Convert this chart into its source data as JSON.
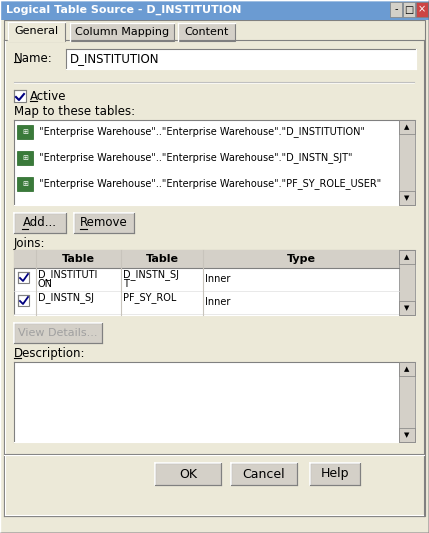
{
  "title": "Logical Table Source - D_INSTITUTION",
  "title_bar_color": "#6b9bd2",
  "title_text_color": "#ffffff",
  "bg_color": "#d4d0c8",
  "dialog_bg": "#ece9d8",
  "tabs": [
    "General",
    "Column Mapping",
    "Content"
  ],
  "name_label": "Name:",
  "name_value": "D_INSTITUTION",
  "active_label": "Active",
  "map_label": "Map to these tables:",
  "table_entries": [
    " \"Enterprise Warehouse\"..\"Enterprise Warehouse\".\"D_INSTITUTION\"",
    " \"Enterprise Warehouse\"..\"Enterprise Warehouse\".\"D_INSTN_SJT\"",
    " \"Enterprise Warehouse\"..\"Enterprise Warehouse\".\"PF_SY_ROLE_USER\""
  ],
  "buttons_row1": [
    "Add...",
    "Remove"
  ],
  "joins_label": "Joins:",
  "joins_headers": [
    "Table",
    "Table",
    "Type"
  ],
  "joins_row1_col1": "D_INSTITUTI",
  "joins_row1_col1b": "ON",
  "joins_row1_col2": "D_INSTN_SJ",
  "joins_row1_col2b": "T",
  "joins_row1_col3": "Inner",
  "joins_row2_col1": "D_INSTN_SJ",
  "joins_row2_col2": "PF_SY_ROL",
  "joins_row2_col3": "Inner",
  "view_details_btn": "View Details...",
  "description_label": "Description:",
  "bottom_buttons": [
    "OK",
    "Cancel",
    "Help"
  ]
}
